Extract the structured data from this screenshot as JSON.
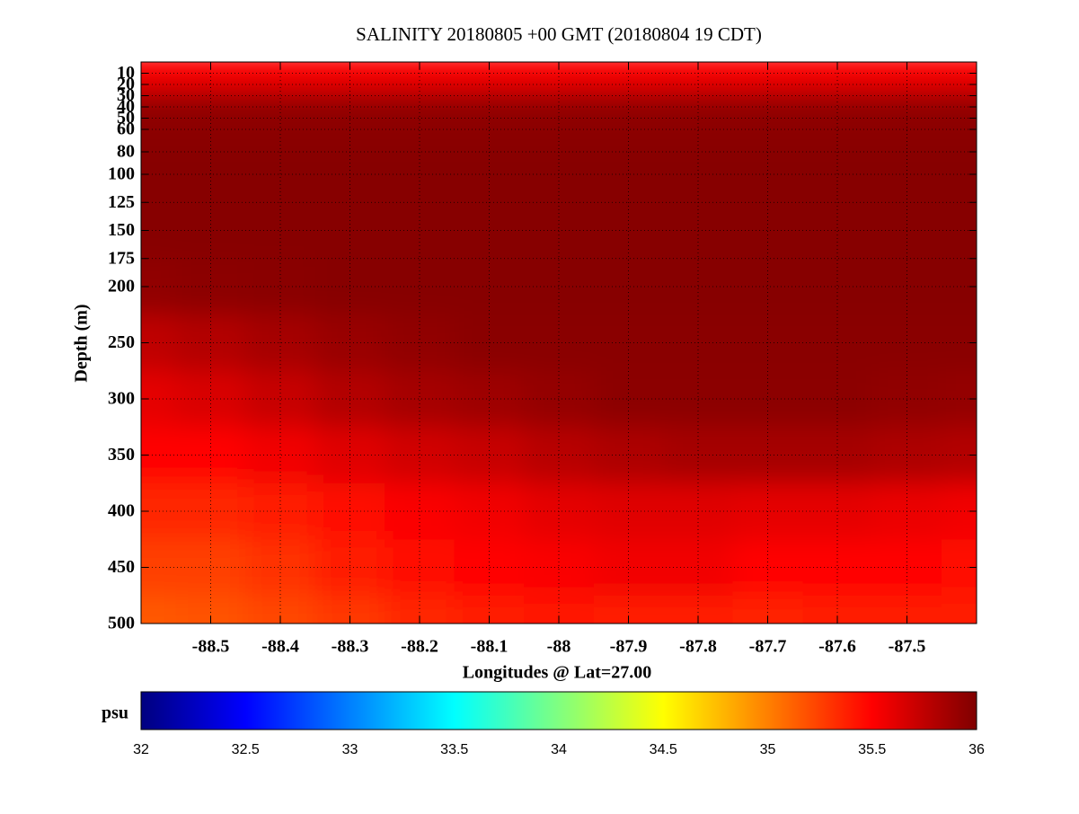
{
  "chart_data": {
    "type": "heatmap",
    "title": "SALINITY 20180805 +00 GMT (20180804 19 CDT)",
    "x_label": "Longitudes @ Lat=27.00",
    "y_label": "Depth (m)",
    "colorbar_label": "psu",
    "colormap": "jet",
    "grid": true,
    "y_reversed": true,
    "xlim": [
      -88.6,
      -87.4
    ],
    "ylim": [
      0,
      500
    ],
    "clim": [
      32,
      36
    ],
    "xticks": [
      -88.5,
      -88.4,
      -88.3,
      -88.2,
      -88.1,
      -88,
      -87.9,
      -87.8,
      -87.7,
      -87.6,
      -87.5
    ],
    "yticks": [
      10,
      20,
      30,
      40,
      50,
      60,
      80,
      100,
      125,
      150,
      175,
      200,
      250,
      300,
      350,
      400,
      450,
      500
    ],
    "cticks": [
      32,
      32.5,
      33,
      33.5,
      34,
      34.5,
      35,
      35.5,
      36
    ],
    "x": [
      -88.6,
      -88.5,
      -88.4,
      -88.3,
      -88.2,
      -88.1,
      -88,
      -87.9,
      -87.8,
      -87.7,
      -87.6,
      -87.5,
      -87.4
    ],
    "y": [
      0,
      10,
      20,
      30,
      50,
      100,
      150,
      200,
      250,
      300,
      350,
      400,
      450,
      500
    ],
    "z": [
      [
        35.5,
        35.5,
        35.5,
        35.5,
        35.5,
        35.5,
        35.5,
        35.5,
        35.5,
        35.5,
        35.5,
        35.5,
        35.5
      ],
      [
        35.5,
        35.5,
        35.5,
        35.5,
        35.5,
        35.5,
        35.5,
        35.5,
        35.5,
        35.5,
        35.5,
        35.5,
        35.5
      ],
      [
        35.6,
        35.6,
        35.6,
        35.6,
        35.6,
        35.6,
        35.6,
        35.6,
        35.6,
        35.6,
        35.6,
        35.6,
        35.6
      ],
      [
        35.9,
        35.9,
        35.9,
        35.9,
        35.9,
        35.9,
        35.9,
        35.9,
        35.9,
        35.9,
        35.9,
        35.9,
        35.9
      ],
      [
        35.95,
        35.95,
        35.95,
        35.95,
        35.95,
        35.95,
        35.95,
        35.95,
        35.95,
        35.95,
        35.95,
        35.95,
        35.95
      ],
      [
        35.97,
        35.97,
        35.97,
        35.97,
        35.97,
        35.97,
        35.97,
        35.97,
        35.97,
        35.97,
        35.97,
        35.97,
        35.97
      ],
      [
        35.97,
        35.97,
        35.97,
        35.97,
        35.97,
        35.97,
        35.97,
        35.97,
        35.97,
        35.97,
        35.97,
        35.97,
        35.97
      ],
      [
        35.93,
        35.95,
        35.96,
        35.97,
        35.97,
        35.97,
        35.97,
        35.97,
        35.97,
        35.97,
        35.97,
        35.97,
        35.97
      ],
      [
        35.75,
        35.8,
        35.85,
        35.9,
        35.93,
        35.96,
        35.96,
        35.96,
        35.96,
        35.96,
        35.96,
        35.96,
        35.96
      ],
      [
        35.6,
        35.65,
        35.72,
        35.8,
        35.85,
        35.88,
        35.92,
        35.95,
        35.95,
        35.95,
        35.95,
        35.93,
        35.92
      ],
      [
        35.5,
        35.5,
        35.55,
        35.62,
        35.68,
        35.72,
        35.78,
        35.82,
        35.85,
        35.85,
        35.85,
        35.82,
        35.8
      ],
      [
        35.35,
        35.35,
        35.38,
        35.45,
        35.52,
        35.55,
        35.6,
        35.62,
        35.62,
        35.6,
        35.6,
        35.58,
        35.55
      ],
      [
        35.25,
        35.25,
        35.3,
        35.38,
        35.45,
        35.5,
        35.52,
        35.55,
        35.55,
        35.5,
        35.5,
        35.48,
        35.45
      ],
      [
        35.15,
        35.18,
        35.22,
        35.28,
        35.35,
        35.4,
        35.42,
        35.4,
        35.38,
        35.36,
        35.38,
        35.38,
        35.38
      ]
    ]
  }
}
